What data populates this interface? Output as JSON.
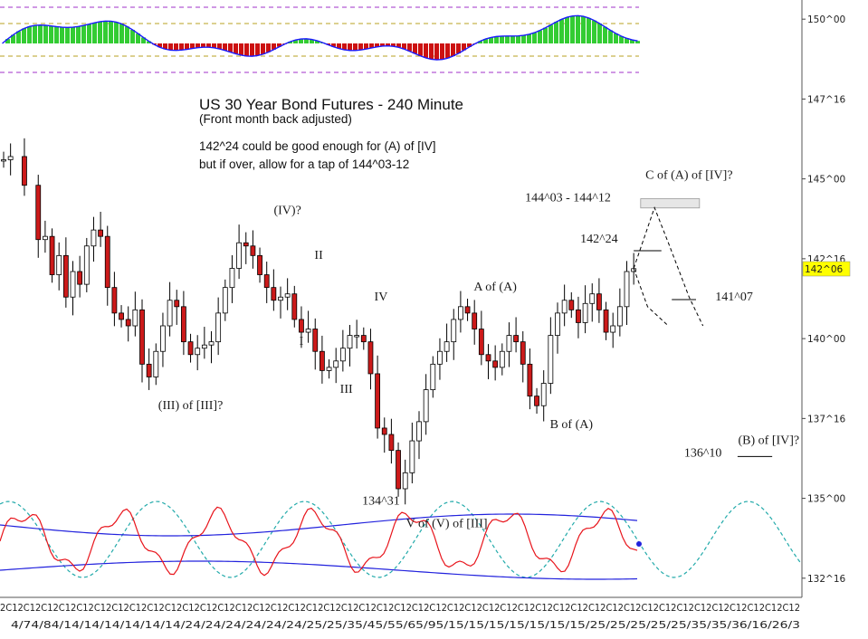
{
  "chart_data": {
    "type": "candlestick",
    "title": "US 30 Year Bond Futures - 240 Minute",
    "subtitle": "(Front month back adjusted)",
    "notes": [
      "142^24 could be good enough for (A) of [IV]",
      "but if over, allow for a tap of 144^03-12"
    ],
    "y_tick_labels": [
      "150^00",
      "147^16",
      "145^00",
      "142^16",
      "140^00",
      "137^16",
      "135^00",
      "132^16"
    ],
    "y_tick_values": [
      150.0,
      147.5,
      145.0,
      142.5,
      140.0,
      137.5,
      135.0,
      132.5
    ],
    "ylim": [
      131.9,
      150.6
    ],
    "last_price_label": "142^06",
    "last_price": 142.1875,
    "x_tick_labels": "2C12C12C12C12C12C12C12C12C12C12C12C12C12C12C12C12C12C12C12C12C12C12C12C12C12C12C12C12C12C12C12C12C12C12C12C12C12C12C12C12C12C12C12C12C12",
    "x_date_labels": "4/74/84/14/14/14/14/14/14/24/24/24/24/24/24/25/25/35/45/55/65/95/15/15/15/15/15/15/15/25/25/25/25/25/35/35/36/16/26/3",
    "price_path": [
      [
        0,
        145.6
      ],
      [
        1,
        145.7
      ],
      [
        3,
        144.8
      ],
      [
        5,
        143.1
      ],
      [
        6,
        143.2
      ],
      [
        7,
        142.0
      ],
      [
        8,
        142.6
      ],
      [
        9,
        141.3
      ],
      [
        10,
        142.1
      ],
      [
        11,
        141.7
      ],
      [
        12,
        142.9
      ],
      [
        13,
        143.4
      ],
      [
        14,
        143.2
      ],
      [
        15,
        141.6
      ],
      [
        16,
        140.8
      ],
      [
        17,
        140.6
      ],
      [
        18,
        140.4
      ],
      [
        19,
        140.9
      ],
      [
        20,
        139.2
      ],
      [
        21,
        138.8
      ],
      [
        22,
        139.6
      ],
      [
        23,
        140.4
      ],
      [
        24,
        141.2
      ],
      [
        25,
        141.0
      ],
      [
        26,
        139.9
      ],
      [
        27,
        139.5
      ],
      [
        28,
        139.7
      ],
      [
        29,
        139.8
      ],
      [
        30,
        139.9
      ],
      [
        31,
        140.8
      ],
      [
        32,
        141.6
      ],
      [
        33,
        142.2
      ],
      [
        34,
        143.0
      ],
      [
        35,
        142.9
      ],
      [
        36,
        142.6
      ],
      [
        37,
        142.0
      ],
      [
        38,
        141.6
      ],
      [
        39,
        141.2
      ],
      [
        40,
        141.3
      ],
      [
        41,
        141.4
      ],
      [
        42,
        140.6
      ],
      [
        43,
        140.2
      ],
      [
        44,
        140.3
      ],
      [
        45,
        139.6
      ],
      [
        46,
        139.0
      ],
      [
        47,
        139.1
      ],
      [
        48,
        139.3
      ],
      [
        49,
        139.7
      ],
      [
        50,
        140.1
      ],
      [
        51,
        140.1
      ],
      [
        52,
        139.9
      ],
      [
        53,
        138.9
      ],
      [
        54,
        137.2
      ],
      [
        55,
        137.0
      ],
      [
        56,
        136.5
      ],
      [
        57,
        135.3
      ],
      [
        58,
        135.8
      ],
      [
        59,
        136.8
      ],
      [
        60,
        137.4
      ],
      [
        61,
        138.4
      ],
      [
        62,
        139.2
      ],
      [
        63,
        139.6
      ],
      [
        64,
        139.9
      ],
      [
        65,
        140.6
      ],
      [
        66,
        141.0
      ],
      [
        67,
        140.8
      ],
      [
        68,
        140.3
      ],
      [
        69,
        139.5
      ],
      [
        70,
        139.3
      ],
      [
        71,
        139.1
      ],
      [
        72,
        139.6
      ],
      [
        73,
        140.1
      ],
      [
        74,
        139.9
      ],
      [
        75,
        139.2
      ],
      [
        76,
        138.2
      ],
      [
        77,
        137.9
      ],
      [
        78,
        138.6
      ],
      [
        79,
        140.1
      ],
      [
        80,
        140.8
      ],
      [
        81,
        141.2
      ],
      [
        82,
        140.9
      ],
      [
        83,
        140.5
      ],
      [
        84,
        141.1
      ],
      [
        85,
        141.4
      ],
      [
        86,
        140.9
      ],
      [
        87,
        140.2
      ],
      [
        88,
        140.4
      ],
      [
        89,
        141.0
      ],
      [
        90,
        142.1
      ],
      [
        91,
        142.19
      ]
    ],
    "annotations": [
      {
        "text": "(IV)?",
        "x": 41,
        "y": 143.9
      },
      {
        "text": "II",
        "x": 45.5,
        "y": 142.5
      },
      {
        "text": "IV",
        "x": 54.5,
        "y": 141.2
      },
      {
        "text": "I",
        "x": 43,
        "y": 139.8
      },
      {
        "text": "III",
        "x": 49.5,
        "y": 138.3
      },
      {
        "text": "(III) of [III]?",
        "x": 27,
        "y": 137.8
      },
      {
        "text": "A of (A)",
        "x": 71,
        "y": 141.5
      },
      {
        "text": "B of (A)",
        "x": 82,
        "y": 137.2
      },
      {
        "text": "134^31",
        "x": 54.5,
        "y": 134.8
      },
      {
        "text": "V of (V) of [III]",
        "x": 64,
        "y": 134.1
      },
      {
        "text": "C of (A) of [IV]?",
        "x": 99,
        "y": 145.0
      },
      {
        "text": "144^03 - 144^12",
        "x": 81.5,
        "y": 144.3
      },
      {
        "text": "142^24",
        "x": 86,
        "y": 143.0
      },
      {
        "text": "141^07",
        "x": 105.5,
        "y": 141.2
      },
      {
        "text": "136^10",
        "x": 101,
        "y": 136.3
      },
      {
        "text": "(B) of [IV]?",
        "x": 110.5,
        "y": 136.7
      }
    ],
    "levels": [
      {
        "label": "142^24",
        "y": 142.75,
        "x_start": 91,
        "x_end": 95
      },
      {
        "label": "141^07",
        "y": 141.22,
        "x_start": 96.5,
        "x_end": 100
      },
      {
        "label": "136^10",
        "y": 136.31,
        "x_start": 106,
        "x_end": 111
      }
    ],
    "target_zone": {
      "label": "144^03 - 144^12",
      "y_low": 144.09,
      "y_high": 144.38,
      "x_start": 92,
      "x_end": 100.5
    },
    "projections": [
      [
        [
          91,
          142.2
        ],
        [
          94,
          144.1
        ],
        [
          96,
          143.0
        ],
        [
          99,
          141.3
        ],
        [
          101,
          140.4
        ]
      ],
      [
        [
          91,
          142.2
        ],
        [
          93,
          141.0
        ],
        [
          96,
          140.4
        ]
      ]
    ],
    "oscillator": {
      "series": [
        "histogram",
        "stochastic",
        "cycle",
        "band_upper",
        "band_lower"
      ],
      "colors": {
        "positive": "#33cc33",
        "negative": "#cc1111",
        "line": "#1a1aff",
        "stochastic": "#e8141b",
        "cycle": "#22aaaa",
        "band": "#2222dd"
      }
    }
  },
  "colors": {
    "up_candle": "#ffffff",
    "down_candle": "#cc1a1a",
    "wick": "#000000",
    "axis_badge": "#ffff00"
  }
}
